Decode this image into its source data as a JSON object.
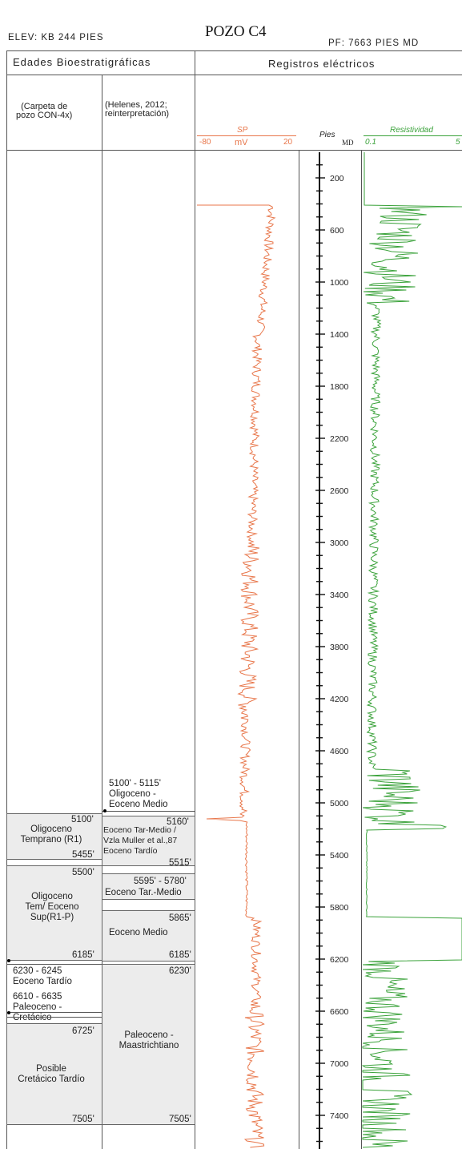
{
  "header": {
    "title": "POZO C4",
    "elev": "ELEV: KB 244 PIES",
    "pf": "PF: 7663 PIES MD"
  },
  "columns": {
    "left_header": "Edades Bioestratigráficas",
    "right_header": "Registros eléctricos",
    "col1_label": "(Carpeta de\npozo CON-4x)",
    "col2_label": "(Helenes, 2012;\nreinterpretación)"
  },
  "sp_track": {
    "name": "SP",
    "unit": "mV",
    "min_label": "-80",
    "max_label": "20",
    "color": "#e8764a"
  },
  "depth_track": {
    "name": "Pies",
    "unit": "MD",
    "ticks": [
      "200",
      "600",
      "1000",
      "1400",
      "1800",
      "2200",
      "2600",
      "3000",
      "3400",
      "3800",
      "4200",
      "4600",
      "5000",
      "5400",
      "5800",
      "6200",
      "6600",
      "7000",
      "7400"
    ]
  },
  "res_track": {
    "name": "Resistividad",
    "min_label": "0.1",
    "max_label": "5",
    "color": "#3aa23a"
  },
  "col1_zones": [
    {
      "top": "5100'",
      "name": "Oligoceno\nTemprano (R1)",
      "bottom": "5455'"
    },
    {
      "top": "5500'",
      "name": "Oligoceno\nTem/ Eoceno\nSup(R1-P)",
      "bottom": "6185'"
    },
    {
      "top": "6725'",
      "name": "Posible\nCretácico Tardío",
      "bottom": "7505'"
    }
  ],
  "col1_notes": [
    "6230 - 6245\nEoceno Tardío",
    "6610 - 6635\nPaleoceno -\nCretácico"
  ],
  "col2_note": "5100' - 5115'\nOligoceno -\nEoceno Medio",
  "col2_zones": [
    {
      "top": "5160'",
      "name": "Eoceno Tar-Medio /\nVzla Muller et al.,87\nEoceno Tardío",
      "bottom": "5515'"
    },
    {
      "top": "5595' - 5780'",
      "name": "Eoceno Tar.-Medio",
      "bottom": ""
    },
    {
      "top": "5865'",
      "name": "Eoceno Medio",
      "bottom": "6185'"
    },
    {
      "top": "6230'",
      "name": "Paleoceno -\nMaastrichtiano",
      "bottom": "7505'"
    }
  ]
}
